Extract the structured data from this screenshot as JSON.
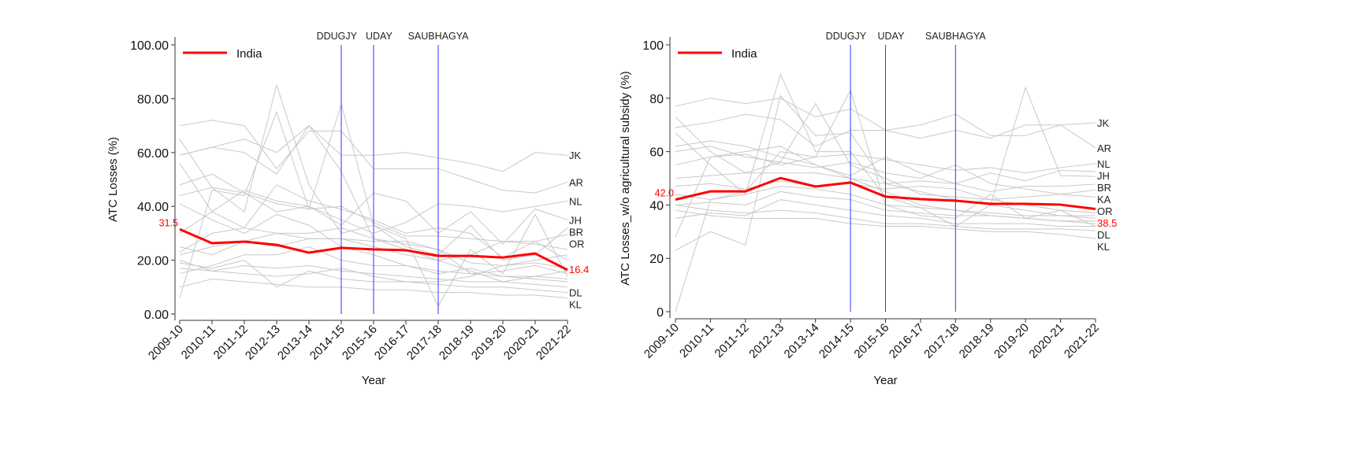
{
  "chart_data": [
    {
      "type": "line",
      "ylabel": "ATC Losses (%)",
      "xlabel": "Year",
      "ylim": [
        0,
        100
      ],
      "yticks": [
        "0.00",
        "20.00",
        "40.00",
        "60.00",
        "80.00",
        "100.00"
      ],
      "ytick_values": [
        0,
        20,
        40,
        60,
        80,
        100
      ],
      "categories": [
        "2009-10",
        "2010-11",
        "2011-12",
        "2012-13",
        "2013-14",
        "2014-15",
        "2015-16",
        "2016-17",
        "2017-18",
        "2018-19",
        "2019-20",
        "2020-21",
        "2021-22"
      ],
      "legend": {
        "label": "India",
        "placement": "top-left"
      },
      "events": [
        {
          "label": "DDUGJY",
          "year": "2014-15"
        },
        {
          "label": "UDAY",
          "year": "2015-16"
        },
        {
          "label": "SAUBHAGYA",
          "year": "2017-18"
        }
      ],
      "highlight": {
        "name": "India",
        "color": "#ff0000",
        "start_label": "31.5",
        "end_label": "16.4",
        "values": [
          31.5,
          26.3,
          26.9,
          25.7,
          22.8,
          24.6,
          24.0,
          23.7,
          21.6,
          21.6,
          21.0,
          22.5,
          16.4
        ]
      },
      "series": [
        {
          "name": "JK",
          "values": [
            59,
            62,
            65,
            60,
            70,
            59,
            59,
            60,
            58,
            56,
            53,
            60,
            59
          ]
        },
        {
          "name": "AR",
          "values": [
            70,
            72,
            70,
            54,
            68,
            68,
            54,
            54,
            54,
            50,
            46,
            45,
            49
          ]
        },
        {
          "name": "NL",
          "values": [
            48,
            52,
            45,
            38,
            40,
            35,
            30,
            34,
            41,
            40,
            38,
            40,
            42
          ]
        },
        {
          "name": "JH",
          "values": [
            56,
            38,
            46,
            42,
            40,
            33,
            45,
            42,
            30,
            38,
            26,
            39,
            35
          ]
        },
        {
          "name": "BR",
          "values": [
            65,
            47,
            38,
            85,
            48,
            30,
            33,
            25,
            22,
            33,
            20,
            22,
            32
          ]
        },
        {
          "name": "OR",
          "values": [
            44,
            47,
            45,
            41,
            39,
            40,
            34,
            29,
            29,
            28,
            27,
            27,
            29.5
          ]
        },
        {
          "name": "DL",
          "values": [
            20,
            16,
            15,
            14,
            15,
            17,
            14,
            12,
            11,
            10,
            10,
            9,
            8
          ]
        },
        {
          "name": "KL",
          "values": [
            10,
            13,
            12,
            11,
            10,
            10,
            9,
            9,
            8,
            8,
            7,
            7,
            6
          ]
        },
        {
          "name": "",
          "values": [
            6,
            46,
            44,
            75,
            39,
            78,
            33,
            28,
            3,
            24,
            15,
            37,
            14
          ]
        },
        {
          "name": "",
          "values": [
            19,
            17,
            20,
            10,
            16,
            13,
            12,
            12,
            12,
            14,
            18,
            19,
            17
          ]
        },
        {
          "name": "",
          "values": [
            25,
            22,
            27,
            30,
            28,
            28,
            25,
            22,
            20,
            16,
            12,
            14,
            13
          ]
        },
        {
          "name": "",
          "values": [
            30,
            38,
            32,
            30,
            30,
            32,
            28,
            24,
            20,
            22,
            27,
            26,
            24
          ]
        },
        {
          "name": "",
          "values": [
            17,
            16,
            18,
            17,
            18,
            16,
            15,
            14,
            13,
            12,
            12,
            11,
            10
          ]
        },
        {
          "name": "",
          "values": [
            41,
            35,
            30,
            37,
            33,
            25,
            22,
            18,
            16,
            15,
            16,
            18,
            15
          ]
        },
        {
          "name": "",
          "values": [
            15,
            18,
            22,
            22,
            25,
            20,
            18,
            18,
            15,
            17,
            14,
            13,
            12
          ]
        },
        {
          "name": "",
          "values": [
            23,
            30,
            32,
            48,
            42,
            39,
            35,
            30,
            32,
            30,
            21,
            27,
            20
          ]
        },
        {
          "name": "",
          "values": [
            59,
            62,
            60,
            52,
            70,
            53,
            28,
            26,
            24,
            15,
            14,
            14,
            16
          ]
        },
        {
          "name": "",
          "values": [
            22,
            25,
            27,
            25,
            28,
            28,
            27,
            27,
            24,
            19,
            18,
            20,
            22
          ]
        }
      ],
      "series_color": "#c8c8c8",
      "event_color": "#3333ff",
      "grid": false
    },
    {
      "type": "line",
      "ylabel": "ATC Losses_w/o agricultural subsidy (%)",
      "xlabel": "Year",
      "ylim": [
        0,
        100
      ],
      "yticks": [
        "0",
        "20",
        "40",
        "60",
        "80",
        "100"
      ],
      "ytick_values": [
        0,
        20,
        40,
        60,
        80,
        100
      ],
      "categories": [
        "2009-10",
        "2010-11",
        "2011-12",
        "2012-13",
        "2013-14",
        "2014-15",
        "2015-16",
        "2016-17",
        "2017-18",
        "2018-19",
        "2019-20",
        "2020-21",
        "2021-22"
      ],
      "legend": {
        "label": "India",
        "placement": "top-left"
      },
      "events": [
        {
          "label": "DDUGJY",
          "year": "2014-15"
        },
        {
          "label": "UDAY",
          "year": "2015-16"
        },
        {
          "label": "SAUBHAGYA",
          "year": "2017-18"
        }
      ],
      "highlight": {
        "name": "India",
        "color": "#ff0000",
        "start_label": "42.0",
        "end_label": "38.5",
        "values": [
          42.0,
          45.1,
          45.1,
          50.1,
          46.9,
          48.4,
          43.1,
          42.2,
          41.6,
          40.4,
          40.4,
          40.1,
          38.5
        ]
      },
      "series": [
        {
          "name": "JK",
          "values": [
            77,
            80,
            78,
            80,
            73,
            76,
            68,
            70,
            74,
            66,
            66,
            70,
            70.8
          ]
        },
        {
          "name": "AR",
          "values": [
            69,
            71,
            74,
            72,
            62,
            68,
            68,
            65,
            68,
            65,
            70,
            70,
            61.4
          ]
        },
        {
          "name": "NL",
          "values": [
            55,
            58,
            59,
            55,
            58,
            59,
            57,
            55,
            53,
            54,
            52,
            54,
            55.5
          ]
        },
        {
          "name": "JH",
          "values": [
            62,
            64,
            62,
            58,
            55,
            51,
            58,
            52,
            48,
            52,
            49,
            53,
            52.5
          ]
        },
        {
          "name": "BR",
          "values": [
            67,
            55,
            44,
            89,
            60,
            60,
            43,
            39,
            32,
            40,
            84,
            51,
            50.7
          ]
        },
        {
          "name": "KA",
          "values": [
            50,
            51,
            52,
            52,
            52,
            50,
            48,
            49,
            48,
            45,
            47,
            47,
            47.8
          ]
        },
        {
          "name": "OR",
          "values": [
            47,
            48,
            46,
            49,
            47,
            48,
            46,
            47,
            46,
            42,
            43,
            44,
            45.7
          ]
        },
        {
          "name": "DL",
          "values": [
            40,
            38,
            37,
            38,
            37,
            35,
            33,
            33,
            32,
            31,
            31,
            31,
            30.4
          ]
        },
        {
          "name": "KL",
          "values": [
            38,
            36,
            35,
            35,
            35,
            33,
            32,
            32,
            31,
            30,
            30,
            29,
            27.4
          ]
        },
        {
          "name": "",
          "values": [
            0,
            42,
            45,
            60,
            58,
            83,
            40,
            36,
            35,
            44,
            35,
            38,
            32
          ]
        },
        {
          "name": "",
          "values": [
            23,
            30,
            25,
            81,
            66,
            67,
            48,
            45,
            42,
            40,
            38,
            36,
            35
          ]
        },
        {
          "name": "",
          "values": [
            28,
            58,
            60,
            62,
            55,
            50,
            45,
            40,
            38,
            36,
            35,
            34,
            33
          ]
        },
        {
          "name": "",
          "values": [
            73,
            60,
            52,
            56,
            78,
            55,
            50,
            44,
            43,
            42,
            40,
            38,
            37
          ]
        },
        {
          "name": "",
          "values": [
            40,
            41,
            40,
            45,
            43,
            42,
            38,
            37,
            36,
            36,
            35,
            34,
            34
          ]
        },
        {
          "name": "",
          "values": [
            60,
            62,
            58,
            56,
            54,
            56,
            52,
            50,
            55,
            48,
            46,
            44,
            43
          ]
        },
        {
          "name": "",
          "values": [
            44,
            42,
            44,
            47,
            46,
            44,
            40,
            39,
            38,
            37,
            36,
            36,
            36
          ]
        },
        {
          "name": "",
          "values": [
            35,
            37,
            36,
            42,
            40,
            38,
            36,
            35,
            33,
            33,
            33,
            32,
            32
          ]
        }
      ],
      "series_color": "#c8c8c8",
      "event_color": "#3333ff",
      "grid": false
    }
  ]
}
